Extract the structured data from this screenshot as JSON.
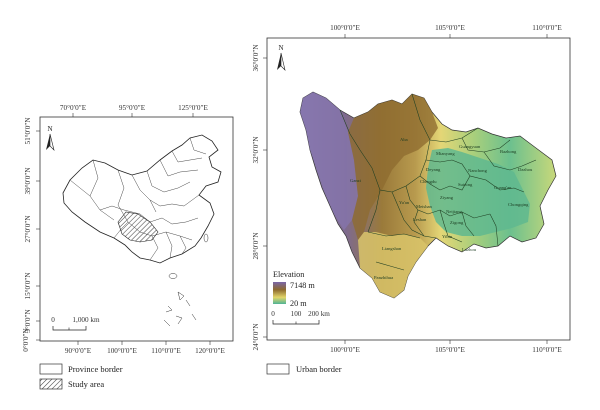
{
  "left_map": {
    "top_ticks": [
      "70°0′0″E",
      "95°0′0″E",
      "125°0′0″E"
    ],
    "bottom_ticks": [
      "90°0′0″E",
      "100°0′0″E",
      "110°0′0″E",
      "120°0′0″E"
    ],
    "left_ticks": [
      "51°0′0″N",
      "39°0′0″N",
      "27°0′0″N",
      "15°0′0″N",
      "3°0′0″N",
      "0°0′0″N"
    ],
    "north_label": "N",
    "scale": {
      "zero": "0",
      "end": "1,000 km"
    }
  },
  "right_map": {
    "top_ticks": [
      "100°0′0″E",
      "105°0′0″E",
      "110°0′0″E"
    ],
    "bottom_ticks": [
      "100°0′0″E",
      "105°0′0″E",
      "110°0′0″E"
    ],
    "left_ticks": [
      "36°0′0″N",
      "32°0′0″N",
      "28°0′0″N",
      "24°0′0″N"
    ],
    "north_label": "N",
    "scale": {
      "labels": [
        "0",
        "100",
        "200 km"
      ]
    },
    "elevation_legend": {
      "title": "Elevation",
      "high": "7148 m",
      "low": "20 m"
    },
    "city_labels": [
      "Aba",
      "Ganzi",
      "Guangyuan",
      "Bazhong",
      "Mianyang",
      "Dazhou",
      "Deyang",
      "Nanchong",
      "Chengdu",
      "Suining",
      "Guang'an",
      "Ya'an",
      "Ziyang",
      "Meishan",
      "Neijiang",
      "Chongqing",
      "Leshan",
      "Zigong",
      "Yibin",
      "Luzhou",
      "Liangshan",
      "Panzhihua"
    ]
  },
  "legend": {
    "province_border": "Province border",
    "study_area": "Study area",
    "urban_border": "Urban border"
  },
  "colors": {
    "high": "#7b66a8",
    "mid_high": "#8d6a2e",
    "mid": "#e3d66a",
    "low": "#4fb496"
  }
}
